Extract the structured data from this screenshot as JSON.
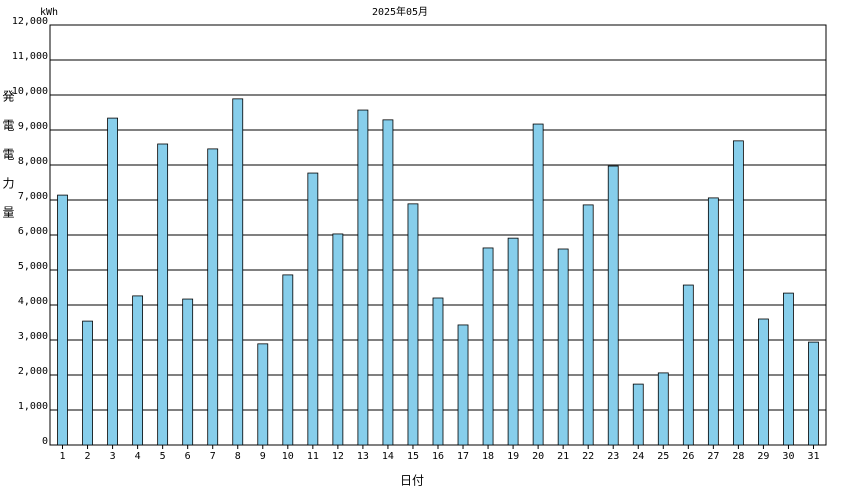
{
  "chart_data": {
    "type": "bar",
    "title": "2025年05月",
    "unit": "kWh",
    "y_label": "発電電力量",
    "x_label": "日付",
    "categories": [
      "1",
      "2",
      "3",
      "4",
      "5",
      "6",
      "7",
      "8",
      "9",
      "10",
      "11",
      "12",
      "13",
      "14",
      "15",
      "16",
      "17",
      "18",
      "19",
      "20",
      "21",
      "22",
      "23",
      "24",
      "25",
      "26",
      "27",
      "28",
      "29",
      "30",
      "31"
    ],
    "values": [
      7140,
      3540,
      9340,
      4260,
      8600,
      4170,
      8460,
      9890,
      2890,
      4860,
      7770,
      6030,
      9570,
      9290,
      6890,
      4200,
      3430,
      5630,
      5910,
      9170,
      5600,
      6860,
      7970,
      1740,
      2060,
      4570,
      7060,
      8690,
      3600,
      4340,
      2940
    ],
    "color": "#87ceeb",
    "ylim": [
      0,
      12000
    ],
    "yticks": [
      0,
      {
        "value": 1000,
        "label": "1,000"
      },
      {
        "value": 2000,
        "label": "2,000"
      },
      {
        "value": 3000,
        "label": "3,000"
      },
      {
        "value": 4000,
        "label": "4,000"
      },
      {
        "value": 5000,
        "label": "5,000"
      },
      {
        "value": 6000,
        "label": "6,000"
      },
      {
        "value": 7000,
        "label": "7,000"
      },
      {
        "value": 8000,
        "label": "8,000"
      },
      {
        "value": 9000,
        "label": "9,000"
      },
      {
        "value": 10000,
        "label": "10,000"
      },
      {
        "value": 11000,
        "label": "11,000"
      },
      {
        "value": 12000,
        "label": "12,000"
      }
    ],
    "grid": true
  }
}
